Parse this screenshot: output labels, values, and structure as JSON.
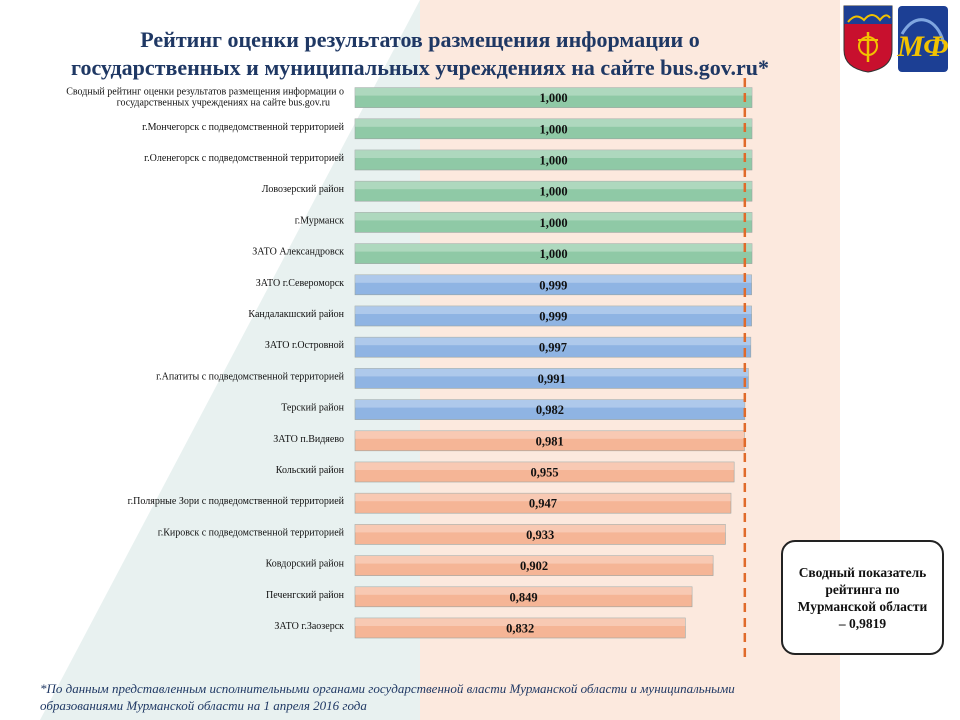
{
  "title_line1": "Рейтинг оценки результатов  размещения  информации о",
  "title_line2": "государственных и муниципальных учреждениях на сайте bus.gov.ru*",
  "summary_box": "Сводный показатель рейтинга по Мурманской области – 0,9819",
  "footnote_line1": "*По данным представленным исполнительными органами государственной власти Мурманской области и муниципальными",
  "footnote_line2": "образованиями Мурманской области на 1 апреля 2016 года",
  "colors": {
    "title": "#1f3864",
    "green": "#8fc9a6",
    "blue": "#8fb4e3",
    "orange": "#f5b596",
    "reference_line": "#e06a2a"
  },
  "icons": [
    "murmansk-coat-of-arms-icon",
    "ministry-of-finance-logo-icon"
  ],
  "chart_data": {
    "type": "bar",
    "orientation": "horizontal",
    "xlim": [
      0,
      1
    ],
    "reference_value": 0.9819,
    "grid": false,
    "legend": "none",
    "categories": [
      "Сводный рейтинг оценки  результатов размещения информации о государственных учреждениях на сайте bus.gov.ru",
      "г.Мончегорск с подведомственной  территорией",
      "г.Оленегорск с подведомственной  территорией",
      "Ловозерский район",
      "г.Мурманск",
      "ЗАТО Александровск",
      "ЗАТО г.Североморск",
      "Кандалакшский  район",
      "ЗАТО г.Островной",
      "г.Апатиты с подведомственной  территорией",
      "Терский район",
      "ЗАТО п.Видяево",
      "Кольский район",
      "г.Полярные Зори с подведомственной  территорией",
      "г.Кировск с подведомственной  территорией",
      "Ковдорский район",
      "Печенгский  район",
      "ЗАТО г.Заозерск"
    ],
    "values": [
      1.0,
      1.0,
      1.0,
      1.0,
      1.0,
      1.0,
      0.999,
      0.999,
      0.997,
      0.991,
      0.982,
      0.981,
      0.955,
      0.947,
      0.933,
      0.902,
      0.849,
      0.832
    ],
    "value_labels": [
      "1,000",
      "1,000",
      "1,000",
      "1,000",
      "1,000",
      "1,000",
      "0,999",
      "0,999",
      "0,997",
      "0,991",
      "0,982",
      "0,981",
      "0,955",
      "0,947",
      "0,933",
      "0,902",
      "0,849",
      "0,832"
    ],
    "bar_colors": [
      "green",
      "green",
      "green",
      "green",
      "green",
      "green",
      "blue",
      "blue",
      "blue",
      "blue",
      "blue",
      "orange",
      "orange",
      "orange",
      "orange",
      "orange",
      "orange",
      "orange"
    ]
  }
}
